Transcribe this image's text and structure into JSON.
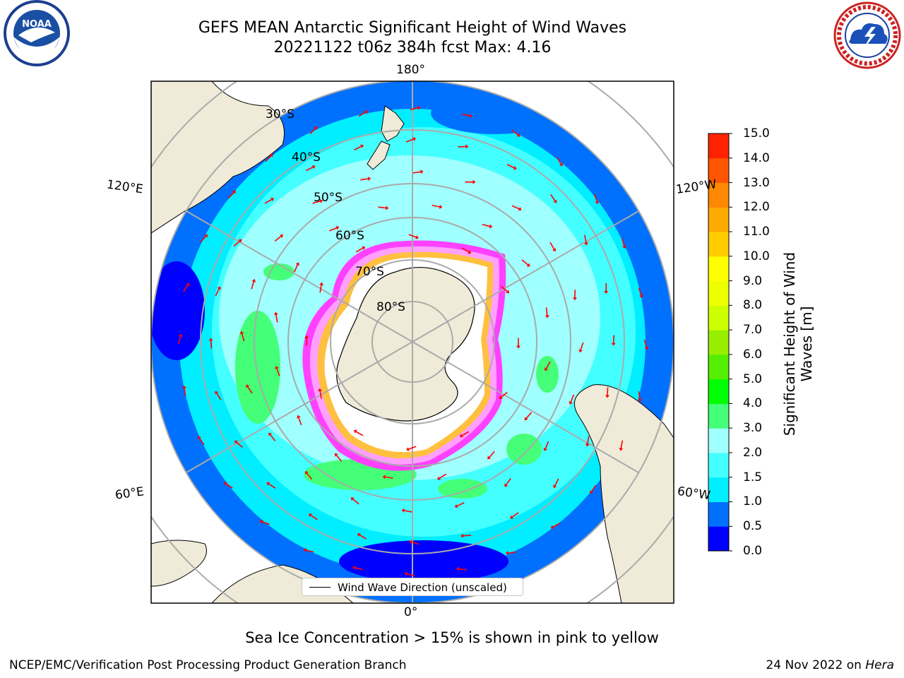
{
  "header": {
    "title_line1": "GEFS MEAN Antarctic Significant Height of Wind Waves",
    "title_line2": "20221122 t06z 384h fcst   Max: 4.16"
  },
  "logos": {
    "left": "NOAA",
    "right": "NATIONAL WEATHER SERVICE"
  },
  "map": {
    "projection": "south-polar-stereographic",
    "lon_labels": {
      "top": "180°",
      "bottom": "0°",
      "upper_left": "120°E",
      "upper_right": "120°W",
      "lower_left": "60°E",
      "lower_right": "60°W"
    },
    "lat_labels": [
      "30°S",
      "40°S",
      "50°S",
      "60°S",
      "70°S",
      "80°S"
    ],
    "colors": {
      "land": "#efebd8",
      "ice_interior": "#ffffff",
      "ice_edge": [
        "#ff40ff",
        "#ffa0ff",
        "#ffc040"
      ],
      "arrow": "#ff0000",
      "grid": "#aaaaaa"
    }
  },
  "legend": {
    "label": "Wind Wave Direction (unscaled)"
  },
  "colorbar": {
    "label_line1": "Significant Height of Wind",
    "label_line2": "Waves [m]",
    "ticks": [
      "15.0",
      "14.0",
      "13.0",
      "12.0",
      "11.0",
      "10.0",
      "9.0",
      "8.0",
      "7.0",
      "6.0",
      "5.0",
      "4.0",
      "3.0",
      "2.0",
      "1.5",
      "1.0",
      "0.5",
      "0.0"
    ],
    "colors": [
      "#0000ff",
      "#0070ff",
      "#00eeff",
      "#44ffff",
      "#a0ffff",
      "#44ff77",
      "#00ff00",
      "#55ee00",
      "#99ee00",
      "#ccff00",
      "#eeff00",
      "#ffff00",
      "#ffcc00",
      "#ffaa00",
      "#ff8800",
      "#ff5500",
      "#ff2200"
    ]
  },
  "caption": "Sea Ice Concentration > 15% is shown in pink to yellow",
  "footer": {
    "left": "NCEP/EMC/Verification Post Processing Product Generation Branch",
    "right_prefix": "24 Nov 2022 on ",
    "right_host": "Hera"
  }
}
